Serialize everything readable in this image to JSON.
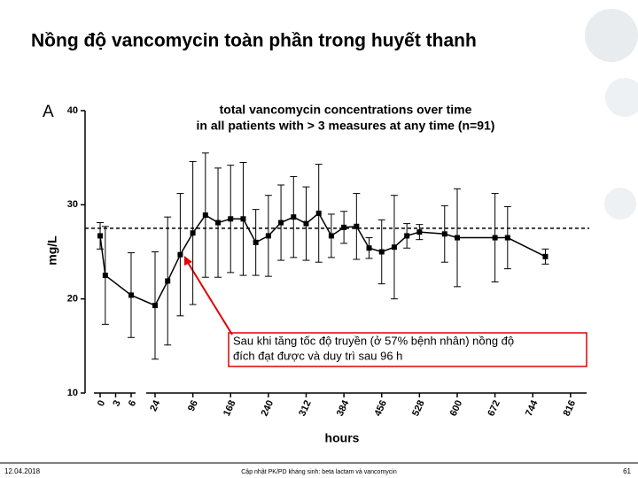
{
  "slide_title": "Nồng độ vancomycin toàn phần trong huyết thanh",
  "footer": {
    "date": "12.04.2018",
    "text": "Cập nhật PK/PD kháng sinh: beta lactam và vancomycin",
    "page": "61"
  },
  "chart_data": {
    "type": "line",
    "panel_label": "A",
    "title": [
      "total vancomycin concentrations over time",
      "in all patients with > 3 measures at any time (n=91)"
    ],
    "x_label": "hours",
    "y_label": "mg/L",
    "x": [
      0,
      1,
      6,
      24,
      48,
      72,
      96,
      120,
      144,
      168,
      192,
      216,
      240,
      264,
      288,
      312,
      336,
      360,
      384,
      408,
      432,
      456,
      480,
      504,
      528,
      576,
      600,
      672,
      696,
      768
    ],
    "values": [
      26.7,
      22.5,
      20.4,
      19.3,
      21.9,
      24.7,
      27.0,
      28.9,
      28.1,
      28.5,
      28.5,
      26.0,
      26.7,
      28.1,
      28.7,
      28.0,
      29.1,
      26.7,
      27.6,
      27.7,
      25.4,
      25.0,
      25.5,
      26.7,
      27.1,
      26.9,
      26.5,
      26.5,
      26.5,
      24.5
    ],
    "errors": [
      1.4,
      5.2,
      4.5,
      5.7,
      6.8,
      6.5,
      7.6,
      6.6,
      5.8,
      5.7,
      6.0,
      3.5,
      4.3,
      4.0,
      4.3,
      3.9,
      5.2,
      2.3,
      1.7,
      3.5,
      1.1,
      3.4,
      5.5,
      1.3,
      0.8,
      3.0,
      5.2,
      4.7,
      3.3,
      0.8
    ],
    "color": "#000000",
    "reference_line": 27.5,
    "ylim": [
      10,
      40
    ],
    "yticks": [
      10,
      20,
      30,
      40
    ],
    "xticks": [
      0,
      3,
      6,
      24,
      96,
      168,
      240,
      312,
      384,
      456,
      528,
      600,
      672,
      744,
      816
    ],
    "annotation": [
      "Sau khi tăng tốc độ truyền (ở 57% bệnh nhân) nồng độ",
      "đích đạt được và duy trì sau 96 h"
    ]
  }
}
